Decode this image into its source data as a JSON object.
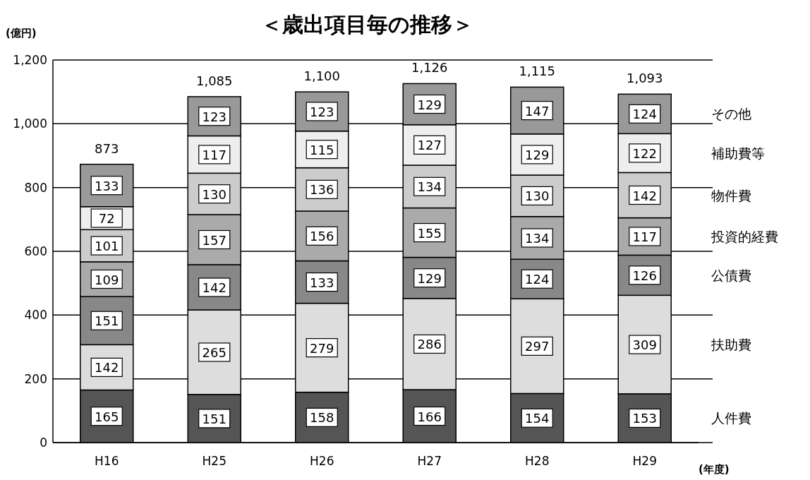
{
  "chart_data": {
    "type": "bar",
    "stacked": true,
    "title": "＜歳出項目毎の推移＞",
    "ylabel": "(億円)",
    "xlabel": "(年度)",
    "categories": [
      "H16",
      "H25",
      "H26",
      "H27",
      "H28",
      "H29"
    ],
    "series": [
      {
        "name": "人件費",
        "color": "#555555",
        "values": [
          165,
          151,
          158,
          166,
          154,
          153
        ]
      },
      {
        "name": "扶助費",
        "color": "#dddddd",
        "values": [
          142,
          265,
          279,
          286,
          297,
          309
        ]
      },
      {
        "name": "公債費",
        "color": "#888888",
        "values": [
          151,
          142,
          133,
          129,
          124,
          126
        ]
      },
      {
        "name": "投資的経費",
        "color": "#aaaaaa",
        "values": [
          109,
          157,
          156,
          155,
          134,
          117
        ]
      },
      {
        "name": "物件費",
        "color": "#cccccc",
        "values": [
          101,
          130,
          136,
          134,
          130,
          142
        ]
      },
      {
        "name": "補助費等",
        "color": "#eeeeee",
        "values": [
          72,
          117,
          115,
          127,
          129,
          122
        ]
      },
      {
        "name": "その他",
        "color": "#999999",
        "values": [
          133,
          123,
          123,
          129,
          147,
          124
        ]
      }
    ],
    "totals": [
      "873",
      "1,085",
      "1,100",
      "1,126",
      "1,115",
      "1,093"
    ],
    "ylim": [
      0,
      1200
    ],
    "yticks": [
      0,
      200,
      400,
      600,
      800,
      {
        "value": 1000,
        "label": "1,000"
      },
      {
        "value": 1200,
        "label": "1,200"
      }
    ],
    "grid": "y",
    "data_labels": true,
    "legend": false
  }
}
